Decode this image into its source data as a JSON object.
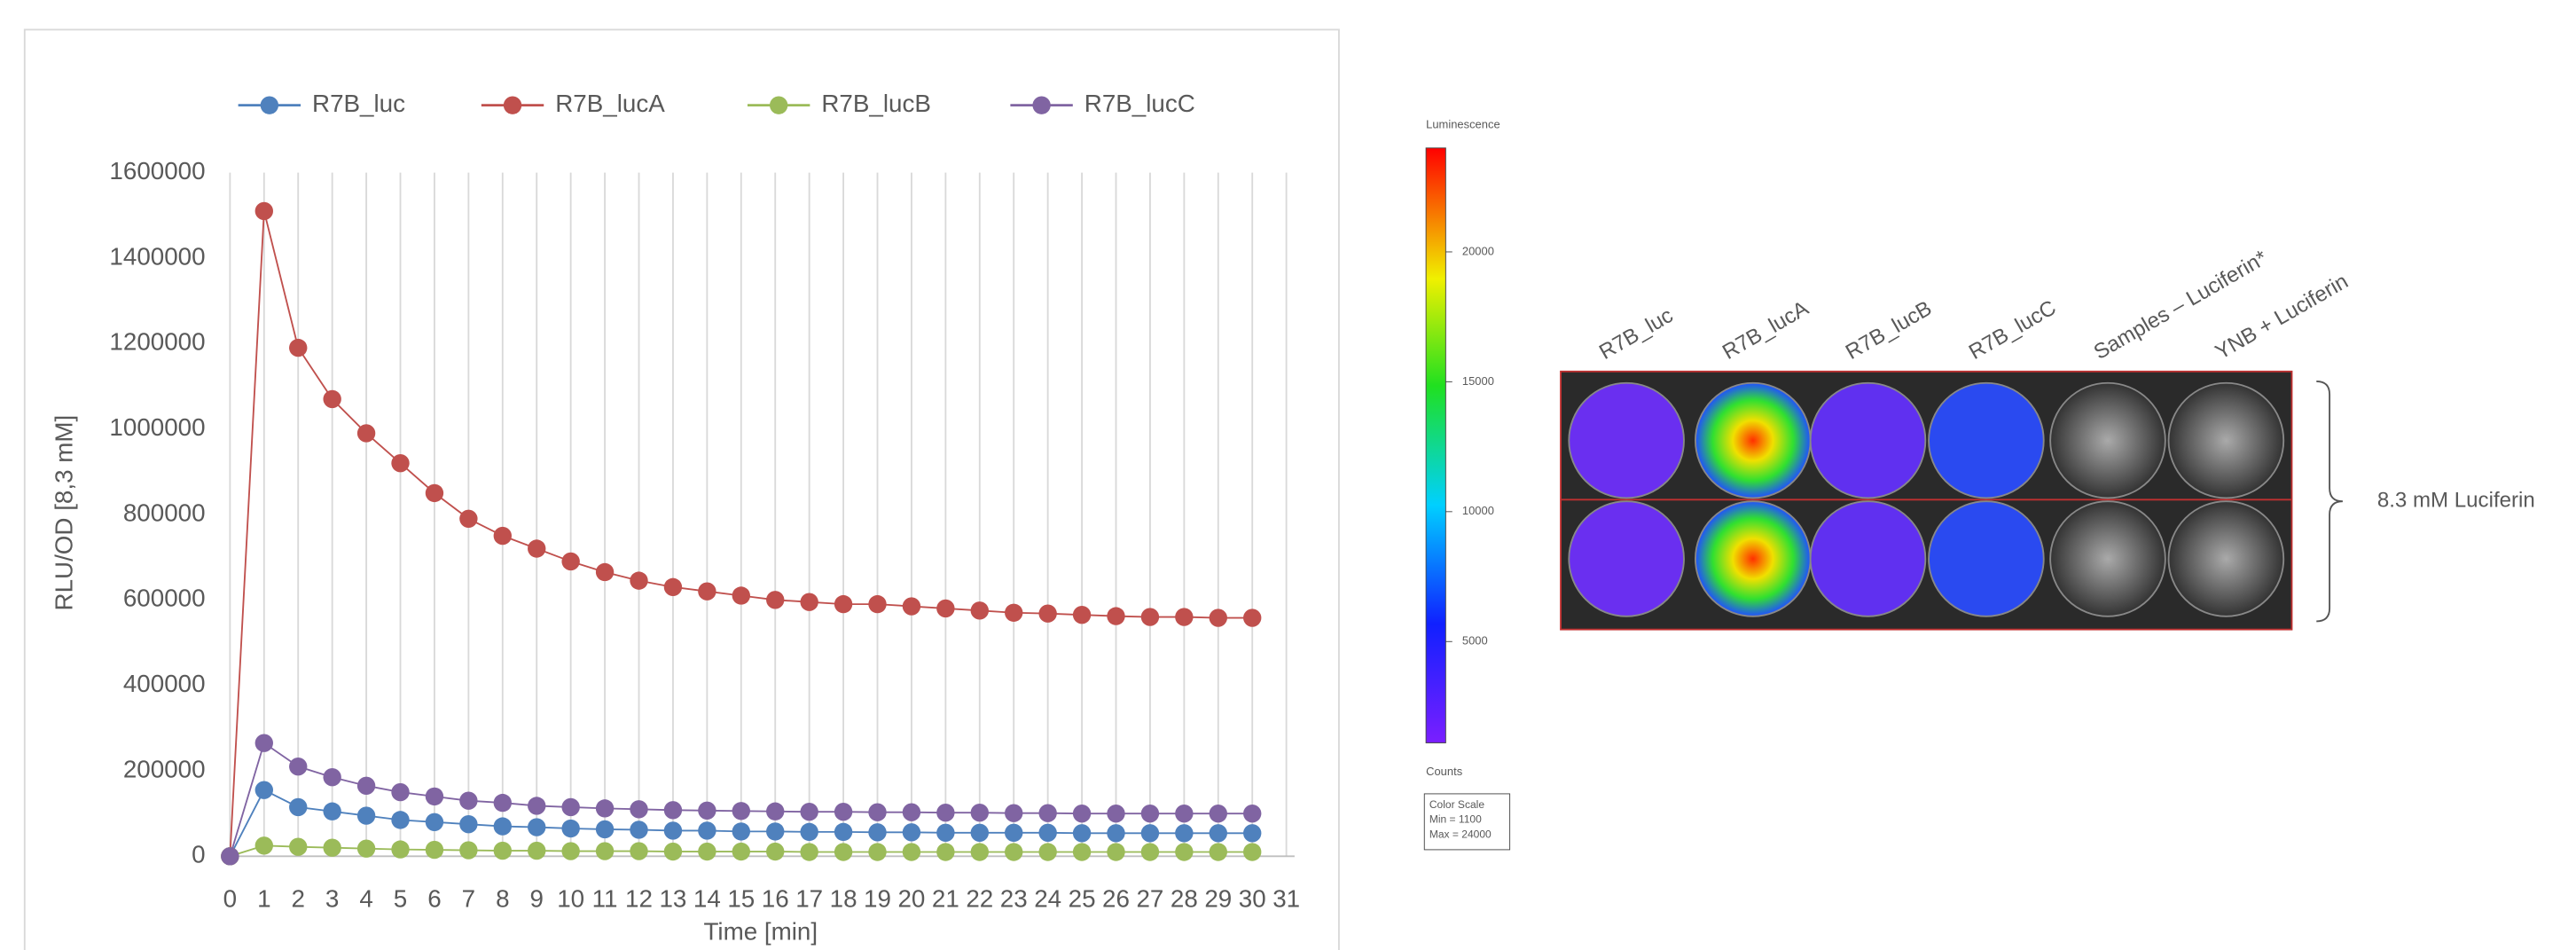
{
  "chart_data": {
    "type": "line",
    "x_label": "Time [min]",
    "y_label": "RLU/OD  [8,3 mM]",
    "x": [
      0,
      1,
      2,
      3,
      4,
      5,
      6,
      7,
      8,
      9,
      10,
      11,
      12,
      13,
      14,
      15,
      16,
      17,
      18,
      19,
      20,
      21,
      22,
      23,
      24,
      25,
      26,
      27,
      28,
      29,
      30
    ],
    "xlim": [
      0,
      31
    ],
    "xticks": [
      0,
      1,
      2,
      3,
      4,
      5,
      6,
      7,
      8,
      9,
      10,
      11,
      12,
      13,
      14,
      15,
      16,
      17,
      18,
      19,
      20,
      21,
      22,
      23,
      24,
      25,
      26,
      27,
      28,
      29,
      30,
      31
    ],
    "ylim": [
      0,
      1600000
    ],
    "yticks": [
      0,
      200000,
      400000,
      600000,
      800000,
      1000000,
      1200000,
      1400000,
      1600000
    ],
    "grid": "x",
    "legend": "top",
    "series": [
      {
        "name": "R7B_luc",
        "color": "#4f81bd",
        "values": [
          0,
          155000,
          115000,
          105000,
          95000,
          85000,
          80000,
          75000,
          70000,
          68000,
          65000,
          63000,
          62000,
          60000,
          60000,
          58000,
          58000,
          57000,
          57000,
          56000,
          56000,
          55000,
          55000,
          55000,
          55000,
          54000,
          54000,
          54000,
          54000,
          54000,
          54000
        ]
      },
      {
        "name": "R7B_lucA",
        "color": "#c0504d",
        "values": [
          0,
          1510000,
          1190000,
          1070000,
          990000,
          920000,
          850000,
          790000,
          750000,
          720000,
          690000,
          665000,
          645000,
          630000,
          620000,
          610000,
          600000,
          595000,
          590000,
          590000,
          585000,
          580000,
          575000,
          570000,
          568000,
          565000,
          562000,
          560000,
          560000,
          558000,
          558000
        ]
      },
      {
        "name": "R7B_lucB",
        "color": "#9bbb59",
        "values": [
          0,
          25000,
          22000,
          20000,
          18000,
          16000,
          15000,
          14000,
          13000,
          13000,
          12000,
          12000,
          12000,
          11000,
          11000,
          11000,
          11000,
          10000,
          10000,
          10000,
          10000,
          10000,
          10000,
          10000,
          10000,
          10000,
          10000,
          10000,
          10000,
          10000,
          10000
        ]
      },
      {
        "name": "R7B_lucC",
        "color": "#8064a2",
        "values": [
          0,
          265000,
          210000,
          185000,
          165000,
          150000,
          140000,
          130000,
          125000,
          118000,
          115000,
          112000,
          110000,
          108000,
          107000,
          106000,
          105000,
          104000,
          104000,
          103000,
          103000,
          102000,
          102000,
          101000,
          101000,
          100000,
          100000,
          100000,
          100000,
          100000,
          100000
        ]
      }
    ]
  },
  "image": {
    "colorbar": {
      "title": "Luminescence",
      "lim": [
        1100,
        24000
      ],
      "ticks": [
        5000,
        10000,
        15000,
        20000
      ],
      "units": "Counts",
      "scale_box": [
        "Color Scale",
        "Min = 1100",
        "Max = 24000"
      ]
    },
    "columns": [
      "R7B_luc",
      "R7B_lucA",
      "R7B_lucB",
      "R7B_lucC",
      "Samples – Luciferin*",
      "YNB + Luciferin"
    ],
    "row_label": "8.3 mM Luciferin"
  }
}
